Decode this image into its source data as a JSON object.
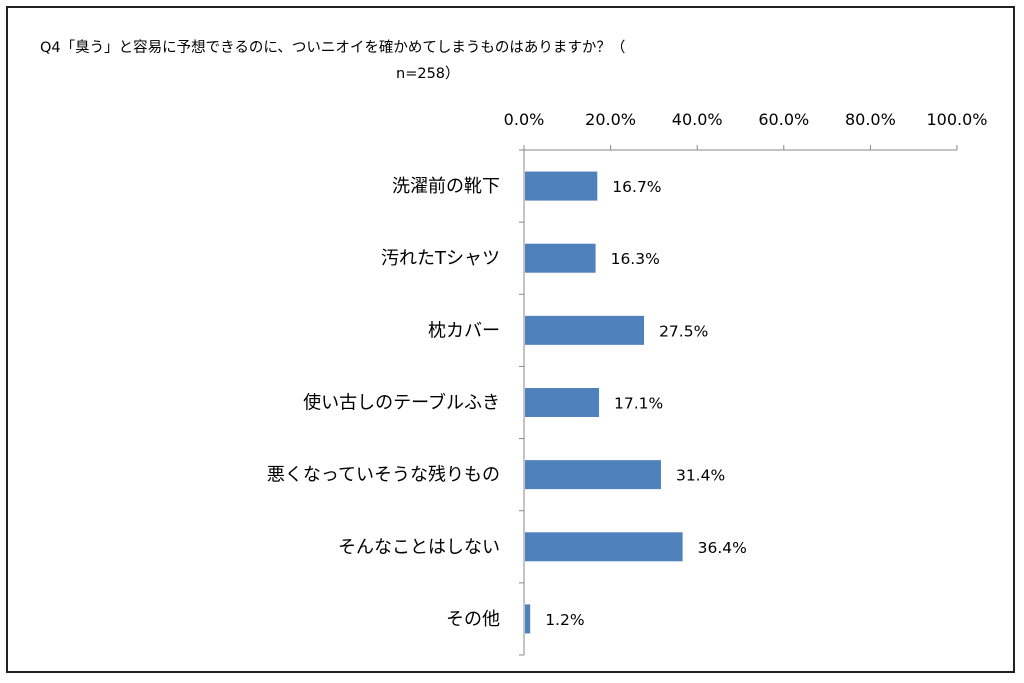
{
  "chart_data": {
    "type": "bar",
    "orientation": "horizontal",
    "title": "Q4「臭う」と容易に予想できるのに、ついニオイを確かめてしまうものはありますか？（",
    "subtitle": "n=258）",
    "categories": [
      "洗濯前の靴下",
      "汚れたTシャツ",
      "枕カバー",
      "使い古しのテーブルふき",
      "悪くなっていそうな残りもの",
      "そんなことはしない",
      "その他"
    ],
    "values": [
      16.7,
      16.3,
      27.5,
      17.1,
      31.4,
      36.4,
      1.2
    ],
    "value_labels": [
      "16.7%",
      "16.3%",
      "27.5%",
      "17.1%",
      "31.4%",
      "36.4%",
      "1.2%"
    ],
    "xlim": [
      0,
      100
    ],
    "ticks": [
      "0.0%",
      "20.0%",
      "40.0%",
      "60.0%",
      "80.0%",
      "100.0%"
    ],
    "axis_position": "top",
    "grid": false,
    "bar_color": "#4f81bd"
  }
}
